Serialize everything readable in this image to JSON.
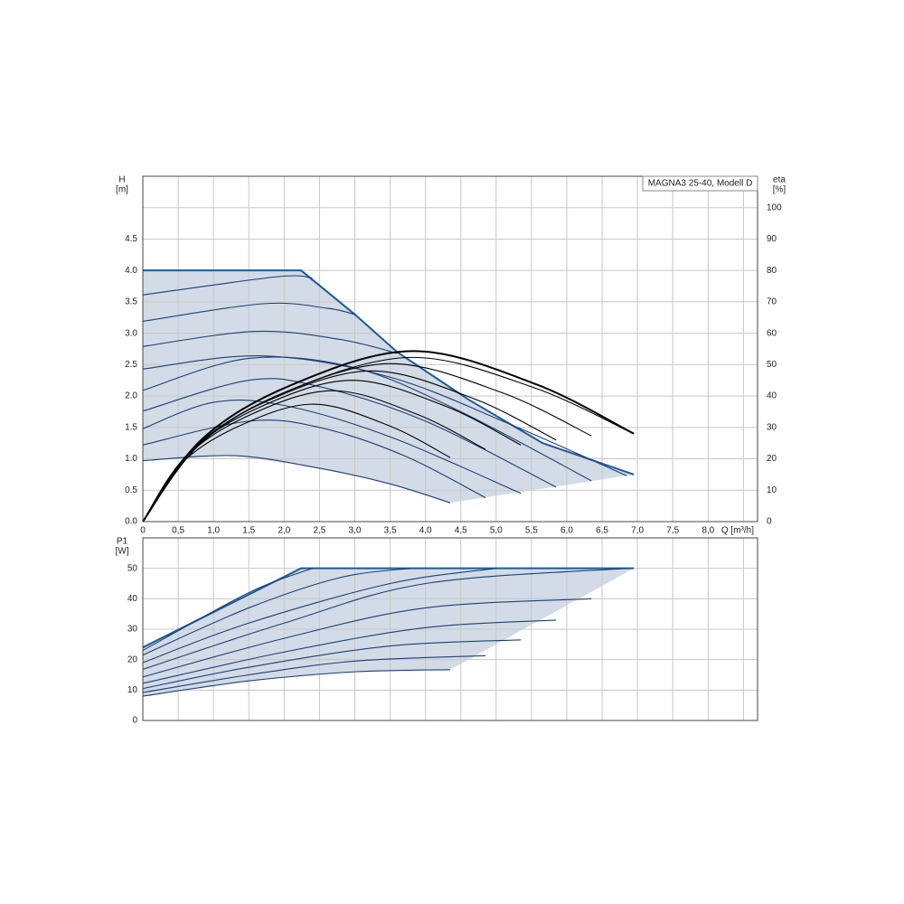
{
  "chart_data": [
    {
      "type": "line",
      "title": "MAGNA3 25-40, Modell D",
      "xlabel": "Q [m³/h]",
      "ylabel": [
        "H",
        "[m]"
      ],
      "y2label": [
        "eta",
        "[%]"
      ],
      "xlim": [
        0,
        8.7
      ],
      "xticks": [
        0,
        {
          "value": 0.5,
          "label": "0,5"
        },
        {
          "value": 1,
          "label": "1,0"
        },
        {
          "value": 1.5,
          "label": "1,5"
        },
        {
          "value": 2,
          "label": "2,0"
        },
        {
          "value": 2.5,
          "label": "2,5"
        },
        {
          "value": 3,
          "label": "3,0"
        },
        {
          "value": 3.5,
          "label": "3,5"
        },
        {
          "value": 4,
          "label": "4,0"
        },
        {
          "value": 4.5,
          "label": "4,5"
        },
        {
          "value": 5,
          "label": "5,0"
        },
        {
          "value": 5.5,
          "label": "5,5"
        },
        {
          "value": 6,
          "label": "6,0"
        },
        {
          "value": 6.5,
          "label": "6,5"
        },
        {
          "value": 7,
          "label": "7,0"
        },
        {
          "value": 7.5,
          "label": "7,5"
        },
        {
          "value": 8,
          "label": "8,0"
        }
      ],
      "xgrid": [
        0.5,
        1,
        1.5,
        2,
        2.5,
        3,
        3.5,
        4,
        4.5,
        5,
        5.5,
        6,
        6.5,
        7,
        7.5,
        8,
        8.5
      ],
      "ylim": [
        0,
        5.5
      ],
      "yticks": [
        {
          "value": 0,
          "label": "0.0"
        },
        0.5,
        {
          "value": 1,
          "label": "1.0"
        },
        1.5,
        {
          "value": 2,
          "label": "2.0"
        },
        2.5,
        {
          "value": 3,
          "label": "3.0"
        },
        3.5,
        {
          "value": 4,
          "label": "4.0"
        },
        4.5
      ],
      "y2lim": [
        0,
        110
      ],
      "y2ticks": [
        0,
        10,
        20,
        30,
        40,
        50,
        60,
        70,
        80,
        90,
        100
      ],
      "grid": true,
      "fill": "#d2dbe6",
      "series": [
        {
          "color": "#1d5a9a",
          "linewidth": 2,
          "smooth": false,
          "x": [
            0,
            2.24,
            3.0,
            3.6,
            4.6,
            5.66,
            6.95
          ],
          "values": [
            4.0,
            4.0,
            3.3,
            2.7,
            1.95,
            1.25,
            0.75
          ]
        },
        {
          "color": "#1b3f7a",
          "x": [
            0,
            1.9,
            2.4
          ],
          "values": [
            3.61,
            3.9,
            3.88
          ]
        },
        {
          "color": "#1b3f7a",
          "x": [
            0,
            1.7,
            2.6,
            3.0
          ],
          "values": [
            3.19,
            3.47,
            3.4,
            3.3
          ]
        },
        {
          "color": "#1b3f7a",
          "x": [
            0,
            1.6,
            2.8,
            3.6
          ],
          "values": [
            2.79,
            3.03,
            2.9,
            2.68
          ]
        },
        {
          "color": "#1b3f7a",
          "x": [
            0,
            1.7,
            3.5,
            5.2,
            6.85
          ],
          "values": [
            2.43,
            2.64,
            2.3,
            1.55,
            0.73
          ]
        },
        {
          "color": "#1b3f7a",
          "x": [
            0,
            1.5,
            3.0,
            4.5,
            6.35
          ],
          "values": [
            2.09,
            2.6,
            2.45,
            1.75,
            0.65
          ]
        },
        {
          "color": "#1b3f7a",
          "x": [
            0,
            1.5,
            2.5,
            4.0,
            5.85
          ],
          "values": [
            1.76,
            2.25,
            2.15,
            1.6,
            0.55
          ]
        },
        {
          "color": "#1b3f7a",
          "x": [
            0,
            1.0,
            2.0,
            3.5,
            5.35
          ],
          "values": [
            1.48,
            1.9,
            1.85,
            1.35,
            0.45
          ]
        },
        {
          "color": "#1b3f7a",
          "x": [
            0,
            1.5,
            2.5,
            3.7,
            4.85
          ],
          "values": [
            1.22,
            1.6,
            1.5,
            1.05,
            0.38
          ]
        },
        {
          "color": "#1b3f7a",
          "x": [
            0,
            1.3,
            2.5,
            3.5,
            4.35
          ],
          "values": [
            0.97,
            1.05,
            0.85,
            0.6,
            0.3
          ]
        },
        {
          "color": "#000000",
          "axis": "y2",
          "linewidth": 2,
          "x": [
            0,
            0.83,
            2.09,
            3.82,
            5.56,
            6.95
          ],
          "values": [
            0,
            26.1,
            43.4,
            54.3,
            43.8,
            28
          ]
        },
        {
          "color": "#000000",
          "axis": "y2",
          "x": [
            0,
            0.83,
            2.07,
            3.8,
            5.52,
            6.9
          ],
          "values": [
            0,
            25.1,
            41.8,
            52.3,
            42.8,
            28.5
          ]
        },
        {
          "color": "#000000",
          "axis": "y2",
          "x": [
            0,
            0.76,
            1.91,
            3.49,
            5.08,
            6.35
          ],
          "values": [
            0,
            24.1,
            40.2,
            50.3,
            41.1,
            27.3
          ]
        },
        {
          "color": "#000000",
          "axis": "y2",
          "x": [
            0,
            0.7,
            1.76,
            3.22,
            4.68,
            5.85
          ],
          "values": [
            0,
            23,
            38.4,
            48,
            39.2,
            26
          ]
        },
        {
          "color": "#000000",
          "axis": "y2",
          "x": [
            0,
            0.64,
            1.61,
            2.94,
            4.28,
            5.35
          ],
          "values": [
            0,
            21.6,
            36,
            45,
            36.8,
            24.4
          ]
        },
        {
          "color": "#000000",
          "axis": "y2",
          "x": [
            0,
            0.58,
            1.46,
            2.67,
            3.88,
            4.85
          ],
          "values": [
            0,
            20,
            33.4,
            41.7,
            34.2,
            23
          ]
        },
        {
          "color": "#000000",
          "axis": "y2",
          "x": [
            0,
            0.52,
            1.31,
            2.39,
            3.48,
            4.35
          ],
          "values": [
            0,
            18,
            29.9,
            37.4,
            30.6,
            20.4
          ]
        }
      ]
    },
    {
      "type": "line",
      "ylabel": [
        "P1",
        "[W]"
      ],
      "xlim": [
        0,
        8.7
      ],
      "xgrid": [
        0.5,
        1,
        1.5,
        2,
        2.5,
        3,
        3.5,
        4,
        4.5,
        5,
        5.5,
        6,
        6.5,
        7,
        7.5,
        8,
        8.5
      ],
      "ylim": [
        0,
        60
      ],
      "yticks": [
        0,
        10,
        20,
        30,
        40,
        50
      ],
      "grid": true,
      "fill": "#d2dbe6",
      "series": [
        {
          "color": "#1d5a9a",
          "linewidth": 2,
          "smooth": false,
          "x": [
            0,
            2.24,
            6.95
          ],
          "values": [
            24,
            50,
            50
          ]
        },
        {
          "color": "#1b3f7a",
          "x": [
            0,
            1.5,
            2.4
          ],
          "values": [
            23,
            42,
            50
          ]
        },
        {
          "color": "#1b3f7a",
          "x": [
            0,
            1.5,
            2.8,
            3.8
          ],
          "values": [
            21.5,
            37,
            47,
            50
          ]
        },
        {
          "color": "#1b3f7a",
          "x": [
            0,
            1.5,
            3.5,
            5.0
          ],
          "values": [
            19,
            32,
            45,
            50
          ]
        },
        {
          "color": "#1b3f7a",
          "x": [
            0,
            2.0,
            4.0,
            6.85
          ],
          "values": [
            16.8,
            32,
            45,
            50
          ]
        },
        {
          "color": "#1b3f7a",
          "x": [
            0,
            2.0,
            4.0,
            6.35
          ],
          "values": [
            14.3,
            27,
            37,
            40
          ]
        },
        {
          "color": "#1b3f7a",
          "x": [
            0,
            2.0,
            4.0,
            5.85
          ],
          "values": [
            12.2,
            22.5,
            30.5,
            33
          ]
        },
        {
          "color": "#1b3f7a",
          "x": [
            0,
            1.5,
            3.5,
            5.35
          ],
          "values": [
            10.5,
            17.5,
            24.5,
            26.5
          ]
        },
        {
          "color": "#1b3f7a",
          "x": [
            0,
            1.5,
            3.0,
            4.85
          ],
          "values": [
            9.2,
            15,
            19.5,
            21.3
          ]
        },
        {
          "color": "#1b3f7a",
          "x": [
            0,
            1.5,
            3.0,
            4.35
          ],
          "values": [
            8,
            13,
            16,
            16.7
          ]
        }
      ]
    }
  ]
}
